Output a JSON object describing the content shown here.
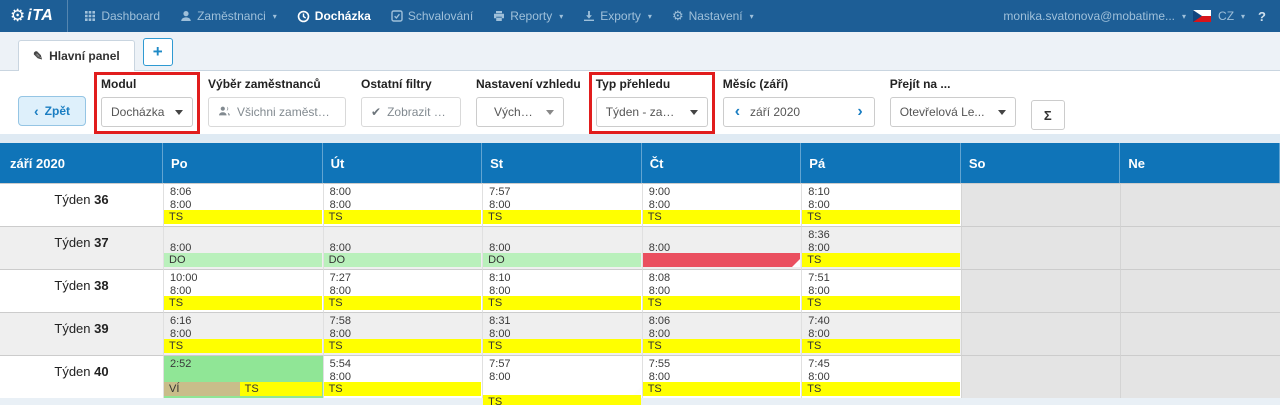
{
  "colors": {
    "navbar_bg": "#1d5e96",
    "header_blue": "#0f74b8",
    "highlight_red": "#e11d1d",
    "yellow": "#ffff00",
    "green_light": "#b9f0bb",
    "green_mid": "#90e696",
    "tan": "#c9bd8a",
    "red": "#ea4f5f",
    "weekend_gray": "#e4e4e4",
    "row_alt": "#efefef"
  },
  "navbar": {
    "logo_text": "iTA",
    "items": [
      {
        "label": "Dashboard"
      },
      {
        "label": "Zaměstnanci",
        "caret": true
      },
      {
        "label": "Docházka",
        "active": true
      },
      {
        "label": "Schvalování"
      },
      {
        "label": "Reporty",
        "caret": true
      },
      {
        "label": "Exporty",
        "caret": true
      },
      {
        "label": "Nastavení",
        "caret": true
      }
    ],
    "user_menu": "monika.svatonova@mobatime...",
    "language": "CZ",
    "help": "?"
  },
  "tabs": {
    "main_tab": "Hlavní panel",
    "add_button": "+"
  },
  "toolbar": {
    "back_button": "Zpět",
    "modul": {
      "label": "Modul",
      "value": "Docházka",
      "highlighted": true
    },
    "employees": {
      "label": "Výběr zaměstnanců",
      "value": "Všichni zaměstnanci"
    },
    "filters": {
      "label": "Ostatní filtry",
      "value": "Zobrazit vše"
    },
    "appearance": {
      "label": "Nastavení vzhledu",
      "value": "Výchozí"
    },
    "view_type": {
      "label": "Typ přehledu",
      "value": "Týden - zam...",
      "highlighted": true
    },
    "month": {
      "label": "Měsíc (září)",
      "value": "září 2020",
      "prev": "‹",
      "next": "›"
    },
    "goto": {
      "label": "Přejít na ...",
      "value": "Otevřelová Le..."
    },
    "sum_button": "Σ"
  },
  "table": {
    "title": "září 2020",
    "week_prefix": "Týden",
    "day_headers": [
      "Po",
      "Út",
      "St",
      "Čt",
      "Pá",
      "So",
      "Ne"
    ],
    "rows": [
      {
        "week": "36",
        "cells": [
          {
            "line1": "8:06",
            "line2": "8:00",
            "bars": [
              {
                "text": "TS",
                "color": "yellow"
              }
            ]
          },
          {
            "line1": "8:00",
            "line2": "8:00",
            "bars": [
              {
                "text": "TS",
                "color": "yellow"
              }
            ]
          },
          {
            "line1": "7:57",
            "line2": "8:00",
            "bars": [
              {
                "text": "TS",
                "color": "yellow"
              }
            ]
          },
          {
            "line1": "9:00",
            "line2": "8:00",
            "bars": [
              {
                "text": "TS",
                "color": "yellow"
              }
            ]
          },
          {
            "line1": "8:10",
            "line2": "8:00",
            "bars": [
              {
                "text": "TS",
                "color": "yellow"
              }
            ]
          },
          {
            "weekend": true
          },
          {
            "weekend": true
          }
        ]
      },
      {
        "week": "37",
        "cells": [
          {
            "line1": "",
            "line2": "8:00",
            "bars": [
              {
                "text": "DO",
                "color": "green_light"
              }
            ]
          },
          {
            "line1": "",
            "line2": "8:00",
            "bars": [
              {
                "text": "DO",
                "color": "green_light"
              }
            ]
          },
          {
            "line1": "",
            "line2": "8:00",
            "bars": [
              {
                "text": "DO",
                "color": "green_light"
              }
            ]
          },
          {
            "line1": "",
            "line2": "8:00",
            "bars": [
              {
                "text": "",
                "color": "red",
                "notch": true
              }
            ]
          },
          {
            "line1": "8:36",
            "line2": "8:00",
            "bars": [
              {
                "text": "TS",
                "color": "yellow"
              }
            ]
          },
          {
            "weekend": true
          },
          {
            "weekend": true
          }
        ]
      },
      {
        "week": "38",
        "cells": [
          {
            "line1": "10:00",
            "line2": "8:00",
            "bars": [
              {
                "text": "TS",
                "color": "yellow"
              }
            ]
          },
          {
            "line1": "7:27",
            "line2": "8:00",
            "bars": [
              {
                "text": "TS",
                "color": "yellow"
              }
            ]
          },
          {
            "line1": "8:10",
            "line2": "8:00",
            "bars": [
              {
                "text": "TS",
                "color": "yellow"
              }
            ]
          },
          {
            "line1": "8:08",
            "line2": "8:00",
            "bars": [
              {
                "text": "TS",
                "color": "yellow"
              }
            ]
          },
          {
            "line1": "7:51",
            "line2": "8:00",
            "bars": [
              {
                "text": "TS",
                "color": "yellow"
              }
            ]
          },
          {
            "weekend": true
          },
          {
            "weekend": true
          }
        ]
      },
      {
        "week": "39",
        "cells": [
          {
            "line1": "6:16",
            "line2": "8:00",
            "bars": [
              {
                "text": "TS",
                "color": "yellow"
              }
            ]
          },
          {
            "line1": "7:58",
            "line2": "8:00",
            "bars": [
              {
                "text": "TS",
                "color": "yellow"
              }
            ]
          },
          {
            "line1": "8:31",
            "line2": "8:00",
            "bars": [
              {
                "text": "TS",
                "color": "yellow"
              }
            ]
          },
          {
            "line1": "8:06",
            "line2": "8:00",
            "bars": [
              {
                "text": "TS",
                "color": "yellow"
              }
            ]
          },
          {
            "line1": "7:40",
            "line2": "8:00",
            "bars": [
              {
                "text": "TS",
                "color": "yellow"
              }
            ]
          },
          {
            "weekend": true
          },
          {
            "weekend": true
          }
        ]
      },
      {
        "week": "40",
        "cells": [
          {
            "line1": "2:52",
            "line2": "",
            "bg": "green_mid",
            "bars": [
              {
                "text": "VÍ",
                "color": "tan",
                "width": "48%"
              },
              {
                "text": "TS",
                "color": "yellow",
                "width": "52%"
              }
            ]
          },
          {
            "line1": "5:54",
            "line2": "8:00",
            "bars": [
              {
                "text": "TS",
                "color": "yellow"
              }
            ]
          },
          {
            "line1": "7:57",
            "line2": "8:00",
            "stack": true,
            "bars": [
              {
                "text": "",
                "color": "red",
                "notch": true
              },
              {
                "text": "TS",
                "color": "yellow"
              }
            ]
          },
          {
            "line1": "7:55",
            "line2": "8:00",
            "bars": [
              {
                "text": "TS",
                "color": "yellow"
              }
            ]
          },
          {
            "line1": "7:45",
            "line2": "8:00",
            "bars": [
              {
                "text": "TS",
                "color": "yellow"
              }
            ]
          },
          {
            "weekend": true
          },
          {
            "weekend": true
          }
        ]
      }
    ]
  }
}
